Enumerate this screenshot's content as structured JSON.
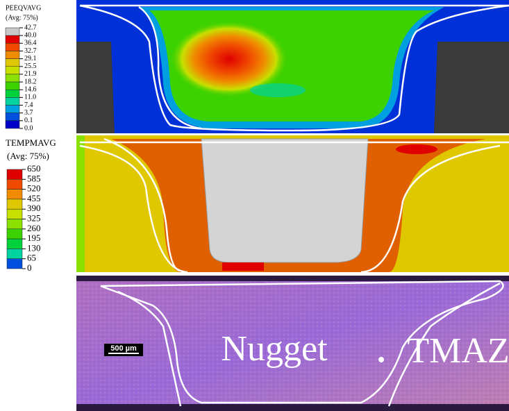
{
  "legends": [
    {
      "title": "PEEQVAVG",
      "subtitle": "(Avg: 75%)",
      "labels": [
        "42.7",
        "40.0",
        "36.4",
        "32.7",
        "29.1",
        "25.5",
        "21.9",
        "18.2",
        "14.6",
        "11.0",
        "7.4",
        "3.7",
        "0.1",
        "0.0"
      ],
      "colors": [
        "#c8c8c8",
        "#e00000",
        "#f04a00",
        "#f08c00",
        "#e0c800",
        "#c8e000",
        "#8ce000",
        "#3cd200",
        "#00d23c",
        "#00d2a0",
        "#00a0e0",
        "#0050e0",
        "#0000c8"
      ]
    },
    {
      "title": "TEMPMAVG",
      "subtitle": "(Avg: 75%)",
      "labels": [
        "650",
        "585",
        "520",
        "455",
        "390",
        "325",
        "260",
        "195",
        "130",
        "65",
        "0"
      ],
      "colors": [
        "#e00000",
        "#f04a00",
        "#f08c00",
        "#e0c800",
        "#c8e000",
        "#8ce000",
        "#3cd200",
        "#00d23c",
        "#00d2a0",
        "#0050e0"
      ]
    }
  ],
  "micrograph": {
    "scale_bar": "500 µm",
    "labels": [
      "Nugget",
      "TMAZ"
    ]
  }
}
